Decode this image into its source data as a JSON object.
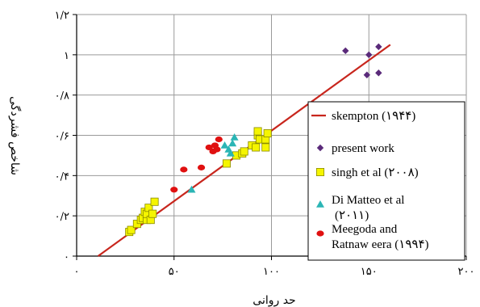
{
  "colors": {
    "skempton": "#c8261d",
    "present": "#5a2a7a",
    "singh": "#f5f500",
    "singh_edge": "#8a8a00",
    "dimatteo": "#2bb5b5",
    "meegoda": "#e01010",
    "grid": "#9a9a9a",
    "axis": "#000000"
  },
  "chart_data": {
    "type": "scatter",
    "title": "",
    "xlabel": "حد روانی",
    "ylabel": "شاخص فشردگی",
    "xlim": [
      0,
      200
    ],
    "ylim": [
      0,
      1.2
    ],
    "x_ticks": [
      {
        "value": 0,
        "label": "۰"
      },
      {
        "value": 50,
        "label": "۵۰"
      },
      {
        "value": 100,
        "label": "۱۰۰"
      },
      {
        "value": 150,
        "label": "۱۵۰"
      },
      {
        "value": 200,
        "label": "۲۰۰"
      }
    ],
    "y_ticks": [
      {
        "value": 0,
        "label": "۰"
      },
      {
        "value": 0.2,
        "label": "۰/۲"
      },
      {
        "value": 0.4,
        "label": "۰/۴"
      },
      {
        "value": 0.6,
        "label": "۰/۶"
      },
      {
        "value": 0.8,
        "label": "۰/۸"
      },
      {
        "value": 1.0,
        "label": "۱"
      },
      {
        "value": 1.2,
        "label": "۱/۲"
      }
    ],
    "grid": true,
    "legend_position": "bottom-right",
    "series": [
      {
        "name": "skempton",
        "name_suffix": "(۱۹۴۴)",
        "kind": "line",
        "color": "#c8261d",
        "x": [
          11,
          161
        ],
        "y": [
          0,
          1.05
        ]
      },
      {
        "name": "present  work",
        "kind": "diamond",
        "color": "#5a2a7a",
        "x": [
          138,
          150,
          149,
          155,
          155
        ],
        "y": [
          1.02,
          1.0,
          0.9,
          1.04,
          0.91
        ]
      },
      {
        "name": "singh et al",
        "name_suffix": "(۲۰۰۸)",
        "kind": "square",
        "color": "#f5f500",
        "x": [
          27,
          28,
          31,
          33,
          34,
          35,
          36,
          36,
          37,
          38,
          39,
          40,
          77,
          82,
          85,
          86,
          90,
          92,
          93,
          93,
          94,
          97,
          97,
          98
        ],
        "y": [
          0.12,
          0.13,
          0.16,
          0.18,
          0.19,
          0.22,
          0.18,
          0.21,
          0.24,
          0.18,
          0.21,
          0.27,
          0.46,
          0.5,
          0.51,
          0.52,
          0.55,
          0.54,
          0.6,
          0.62,
          0.58,
          0.54,
          0.58,
          0.61
        ]
      },
      {
        "name": "Di Matteo et al",
        "name_suffix": "(۲۰۱۱)",
        "kind": "triangle",
        "color": "#2bb5b5",
        "x": [
          59,
          76,
          78,
          79,
          80,
          81
        ],
        "y": [
          0.33,
          0.55,
          0.53,
          0.51,
          0.56,
          0.59
        ]
      },
      {
        "name": "Meegoda and",
        "name_line2": "Ratnaw eera",
        "name_suffix": "(۱۹۹۴)",
        "kind": "circle",
        "color": "#e01010",
        "x": [
          50,
          55,
          64,
          68,
          70,
          71,
          72,
          73
        ],
        "y": [
          0.33,
          0.43,
          0.44,
          0.54,
          0.52,
          0.55,
          0.53,
          0.58
        ]
      }
    ]
  }
}
